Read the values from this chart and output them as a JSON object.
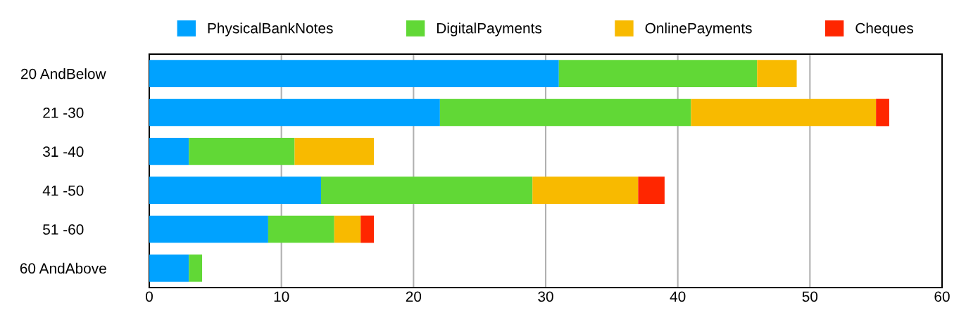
{
  "chart_data": {
    "type": "bar",
    "orientation": "horizontal",
    "stacked": true,
    "categories": [
      "20 AndBelow",
      "21 -30",
      "31 -40",
      "41 -50",
      "51 -60",
      "60 AndAbove"
    ],
    "series": [
      {
        "name": "PhysicalBankNotes",
        "color": "#00a2ff",
        "values": [
          31,
          22,
          3,
          13,
          9,
          3
        ]
      },
      {
        "name": "DigitalPayments",
        "color": "#61d836",
        "values": [
          15,
          19,
          8,
          16,
          5,
          1
        ]
      },
      {
        "name": "OnlinePayments",
        "color": "#f8ba00",
        "values": [
          3,
          14,
          6,
          8,
          2,
          0
        ]
      },
      {
        "name": "Cheques",
        "color": "#ff2600",
        "values": [
          0,
          1,
          0,
          2,
          1,
          0
        ]
      }
    ],
    "xlim": [
      0,
      60
    ],
    "xticks": [
      0,
      10,
      20,
      30,
      40,
      50,
      60
    ],
    "grid": "x",
    "legend": "top"
  }
}
